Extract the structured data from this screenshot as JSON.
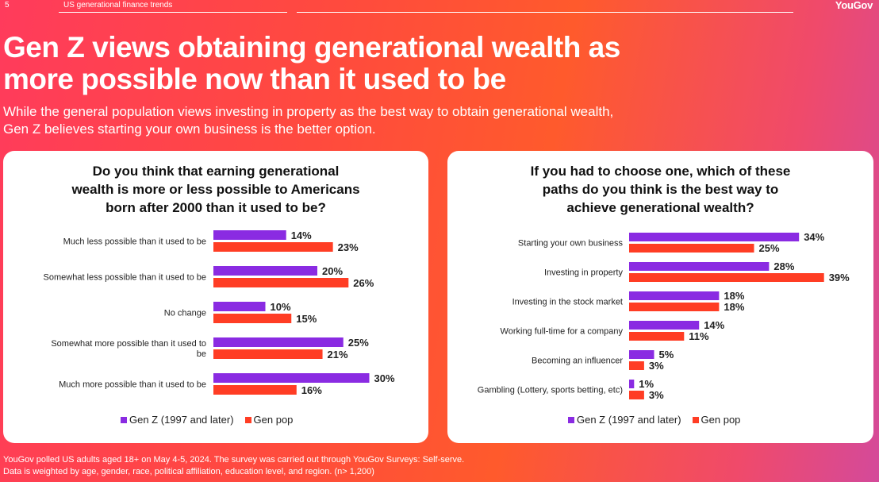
{
  "header": {
    "page_number": "5",
    "section_title": "US generational finance trends",
    "brand": "YouGov"
  },
  "title_line1": "Gen Z views obtaining generational wealth as",
  "title_line2": "more possible now than it used to be",
  "subtitle_line1": "While the general population views investing in property as the best way to obtain generational wealth,",
  "subtitle_line2": "Gen Z believes starting your own business is the better option.",
  "colors": {
    "genz": "#8a2be2",
    "genpop": "#ff3d24"
  },
  "chart_data": [
    {
      "type": "bar",
      "orientation": "horizontal",
      "title_lines": [
        "Do you think that earning generational",
        "wealth is more or less possible to Americans",
        "born after 2000 than it used to be?"
      ],
      "categories": [
        [
          "Much less possible than it used to be"
        ],
        [
          "Somewhat less possible than it used to be"
        ],
        [
          "No change"
        ],
        [
          "Somewhat more possible than it used to",
          "be"
        ],
        [
          "Much more possible than it used to be"
        ]
      ],
      "series": [
        {
          "name": "Gen Z (1997 and later)",
          "values": [
            14,
            20,
            10,
            25,
            30
          ]
        },
        {
          "name": "Gen pop",
          "values": [
            23,
            26,
            15,
            21,
            16
          ]
        }
      ],
      "value_suffix": "%",
      "legend": [
        "Gen Z (1997 and later)",
        "Gen pop"
      ],
      "legend_position": "bottom"
    },
    {
      "type": "bar",
      "orientation": "horizontal",
      "title_lines": [
        "If you had to choose one, which of these",
        "paths do you think is the best way to",
        "achieve generational wealth?"
      ],
      "categories": [
        [
          "Starting your own business"
        ],
        [
          "Investing in property"
        ],
        [
          "Investing in the stock market"
        ],
        [
          "Working full-time for a company"
        ],
        [
          "Becoming an influencer"
        ],
        [
          "Gambling (Lottery, sports betting, etc)"
        ]
      ],
      "series": [
        {
          "name": "Gen Z (1997 and later)",
          "values": [
            34,
            28,
            18,
            14,
            5,
            1
          ]
        },
        {
          "name": "Gen pop",
          "values": [
            25,
            39,
            18,
            11,
            3,
            3
          ]
        }
      ],
      "value_suffix": "%",
      "legend": [
        "Gen Z (1997 and later)",
        "Gen pop"
      ],
      "legend_position": "bottom"
    }
  ],
  "footer_line1": "YouGov polled US adults aged 18+ on May 4-5, 2024. The survey was carried out through YouGov Surveys: Self-serve.",
  "footer_line2": "Data is weighted by age, gender, race, political affiliation, education level, and region. (n> 1,200)"
}
